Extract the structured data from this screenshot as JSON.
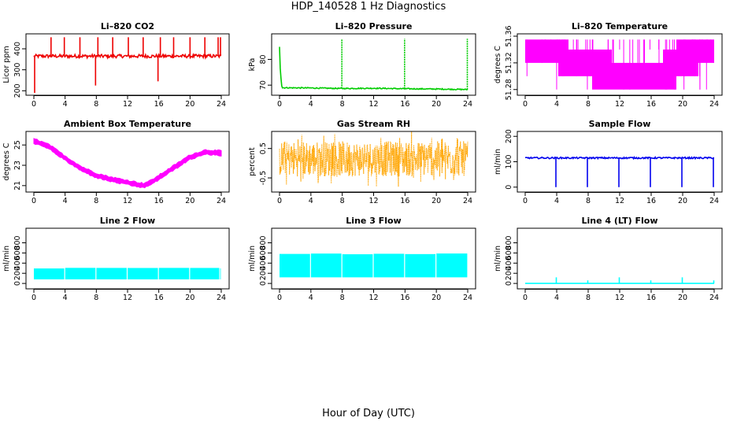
{
  "figure": {
    "title": "HDP_140528  1 Hz Diagnostics",
    "xlabel": "Hour of Day (UTC)"
  },
  "colors": {
    "red": "#ee0000",
    "green": "#00cc00",
    "magenta": "#ff00ff",
    "orange": "#ffa500",
    "blue": "#0000ee",
    "cyan": "#00ffff"
  },
  "chart_data": [
    {
      "type": "line",
      "title": "Li–820 CO2",
      "ylabel": "Licor ppm",
      "color": "#ee0000",
      "style": "spiky",
      "xlim": [
        0,
        24
      ],
      "ylim": [
        190,
        460
      ],
      "xticks": [
        0,
        4,
        8,
        12,
        16,
        20,
        24
      ],
      "yticks": [
        200,
        300,
        400
      ],
      "baseline": 365,
      "noise": 8,
      "spikes": [
        {
          "x": 0.1,
          "y": 190
        },
        {
          "x": 2.2,
          "y": 455
        },
        {
          "x": 3.9,
          "y": 455
        },
        {
          "x": 5.9,
          "y": 455
        },
        {
          "x": 7.9,
          "y": 225
        },
        {
          "x": 8.2,
          "y": 455
        },
        {
          "x": 10.1,
          "y": 455
        },
        {
          "x": 12.1,
          "y": 455
        },
        {
          "x": 14.0,
          "y": 455
        },
        {
          "x": 15.9,
          "y": 245
        },
        {
          "x": 16.2,
          "y": 455
        },
        {
          "x": 17.9,
          "y": 455
        },
        {
          "x": 20.0,
          "y": 455
        },
        {
          "x": 21.9,
          "y": 455
        },
        {
          "x": 23.6,
          "y": 455
        },
        {
          "x": 23.9,
          "y": 455
        }
      ]
    },
    {
      "type": "line",
      "title": "Li–820 Pressure",
      "ylabel": "kPa",
      "color": "#00cc00",
      "style": "spiky",
      "xlim": [
        0,
        24
      ],
      "ylim": [
        67,
        89
      ],
      "xticks": [
        0,
        4,
        8,
        12,
        16,
        20,
        24
      ],
      "yticks": [
        70,
        80
      ],
      "points": [
        [
          0,
          85
        ],
        [
          0.1,
          76
        ],
        [
          0.3,
          69
        ],
        [
          4,
          68.9
        ],
        [
          8,
          68.7
        ],
        [
          12,
          68.8
        ],
        [
          16,
          68.6
        ],
        [
          20,
          68.5
        ],
        [
          24,
          68.3
        ]
      ],
      "noise": 0.2,
      "spikes": [
        {
          "x": 7.95,
          "y": 88
        },
        {
          "x": 15.95,
          "y": 88
        },
        {
          "x": 23.95,
          "y": 88
        }
      ]
    },
    {
      "type": "line",
      "title": "Li–820 Temperature",
      "ylabel": "degrees C",
      "color": "#ff00ff",
      "style": "quantized",
      "xlim": [
        0,
        24
      ],
      "ylim": [
        51.275,
        51.36
      ],
      "xticks": [
        0,
        4,
        8,
        12,
        16,
        20,
        24
      ],
      "yticks": [
        51.28,
        51.32,
        51.36
      ],
      "ytick_labels": [
        "51.28",
        "51.32",
        "51.36"
      ],
      "levels": [
        51.28,
        51.3,
        51.32,
        51.34,
        51.355
      ],
      "bands": [
        [
          0,
          4.2,
          2,
          4
        ],
        [
          4.2,
          5.5,
          1,
          4
        ],
        [
          5.5,
          8.5,
          1,
          3
        ],
        [
          8.5,
          11.0,
          0,
          3
        ],
        [
          11.0,
          17.5,
          0,
          2
        ],
        [
          17.5,
          19.2,
          0,
          3
        ],
        [
          19.2,
          22.0,
          1,
          4
        ],
        [
          22.0,
          24.0,
          2,
          4
        ]
      ]
    },
    {
      "type": "line",
      "title": "Ambient Box Temperature",
      "ylabel": "degrees C",
      "color": "#ff00ff",
      "style": "band",
      "xlim": [
        0,
        24
      ],
      "ylim": [
        20.6,
        26.1
      ],
      "xticks": [
        0,
        4,
        8,
        12,
        16,
        20,
        24
      ],
      "yticks": [
        21,
        23,
        25
      ],
      "points": [
        [
          0,
          25.4
        ],
        [
          2,
          24.8
        ],
        [
          4,
          23.7
        ],
        [
          6,
          22.7
        ],
        [
          8,
          22.0
        ],
        [
          10,
          21.6
        ],
        [
          12,
          21.3
        ],
        [
          14,
          21.0
        ],
        [
          15,
          21.3
        ],
        [
          16,
          21.8
        ],
        [
          18,
          22.8
        ],
        [
          20,
          23.8
        ],
        [
          22,
          24.3
        ],
        [
          24,
          24.2
        ]
      ],
      "width": 0.45
    },
    {
      "type": "line",
      "title": "Gas Stream RH",
      "ylabel": "percent",
      "color": "#ffa500",
      "style": "noise",
      "xlim": [
        0,
        24
      ],
      "ylim": [
        -0.9,
        1.0
      ],
      "xticks": [
        0,
        4,
        8,
        12,
        16,
        20,
        24
      ],
      "yticks": [
        -0.5,
        0.5
      ],
      "ytick_labels": [
        "-0.5",
        "0.5"
      ],
      "center": 0.15,
      "amplitude": 0.6,
      "extreme_amplitude": 0.95
    },
    {
      "type": "line",
      "title": "Sample Flow",
      "ylabel": "ml/min",
      "color": "#0000ee",
      "style": "spiky",
      "xlim": [
        0,
        24
      ],
      "ylim": [
        -10,
        210
      ],
      "xticks": [
        0,
        4,
        8,
        12,
        16,
        20,
        24
      ],
      "yticks": [
        0,
        100,
        200
      ],
      "baseline": 115,
      "noise": 3,
      "spikes": [
        {
          "x": 3.9,
          "y": 0
        },
        {
          "x": 7.9,
          "y": 0
        },
        {
          "x": 11.9,
          "y": 0
        },
        {
          "x": 15.9,
          "y": 0
        },
        {
          "x": 19.9,
          "y": 0
        },
        {
          "x": 23.9,
          "y": 0
        }
      ]
    },
    {
      "type": "line",
      "title": "Line 2 Flow",
      "ylabel": "ml/min",
      "color": "#00ffff",
      "style": "block",
      "xlim": [
        0,
        24
      ],
      "ylim": [
        -60,
        1040
      ],
      "xticks": [
        0,
        4,
        8,
        12,
        16,
        20,
        24
      ],
      "yticks": [
        0,
        200,
        400,
        600,
        800
      ],
      "low": 80,
      "high": 300,
      "gaps": [
        3.95,
        7.95,
        11.95,
        15.95,
        19.95,
        23.8
      ]
    },
    {
      "type": "line",
      "title": "Line 3 Flow",
      "ylabel": "ml/min",
      "color": "#00ffff",
      "style": "block",
      "xlim": [
        0,
        24
      ],
      "ylim": [
        -60,
        1040
      ],
      "xticks": [
        0,
        4,
        8,
        12,
        16,
        20,
        24
      ],
      "yticks": [
        0,
        200,
        400,
        600,
        800
      ],
      "low": 120,
      "high": 580,
      "gaps": [
        3.95,
        7.95,
        11.95,
        15.95,
        19.95
      ]
    },
    {
      "type": "line",
      "title": "Line 4 (LT) Flow",
      "ylabel": "ml/min",
      "color": "#00ffff",
      "style": "spiky",
      "xlim": [
        0,
        24
      ],
      "ylim": [
        -60,
        1040
      ],
      "xticks": [
        0,
        4,
        8,
        12,
        16,
        20,
        24
      ],
      "yticks": [
        0,
        200,
        400,
        600,
        800
      ],
      "baseline": 0,
      "noise": 0,
      "spikes": [
        {
          "x": 3.95,
          "y": 120
        },
        {
          "x": 7.95,
          "y": 60
        },
        {
          "x": 11.95,
          "y": 120
        },
        {
          "x": 15.95,
          "y": 60
        },
        {
          "x": 19.95,
          "y": 120
        },
        {
          "x": 23.95,
          "y": 60
        }
      ]
    }
  ]
}
